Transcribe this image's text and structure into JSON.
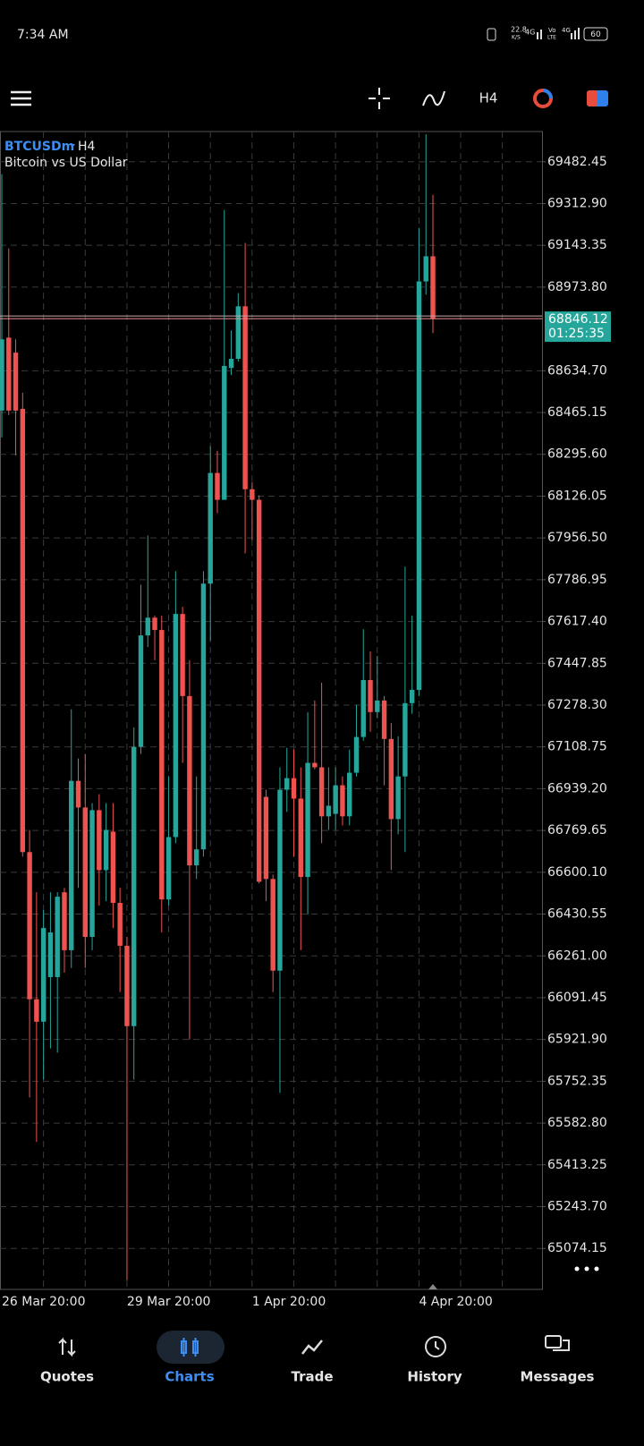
{
  "status_bar": {
    "time": "7:34 AM",
    "speed": "22.8",
    "speed_unit": "K/S",
    "network": "4G",
    "volte": "Vo",
    "volte_sub": "LTE",
    "network2": "4G",
    "battery": "60"
  },
  "toolbar": {
    "timeframe": "H4"
  },
  "chart_data": {
    "type": "candlestick",
    "title": "BTCUSDm",
    "timeframe": "H4",
    "subtitle": "Bitcoin vs US Dollar",
    "categories": [
      "26 Mar 20:00",
      null,
      null,
      null,
      null,
      null,
      null,
      null,
      null,
      null,
      null,
      null,
      null,
      null,
      null,
      null,
      null,
      null,
      "29 Mar 20:00",
      null,
      null,
      null,
      null,
      null,
      null,
      null,
      null,
      null,
      null,
      null,
      null,
      null,
      null,
      null,
      null,
      null,
      "1 Apr 20:00",
      null,
      null,
      null,
      null,
      null,
      null,
      null,
      null,
      null,
      null,
      null,
      null,
      null,
      null,
      null,
      null,
      null,
      null,
      null,
      null,
      null,
      null,
      null,
      "4 Apr 20:00",
      null,
      null
    ],
    "open": [
      68473,
      68769,
      68708,
      68480,
      66682,
      66085,
      65994,
      66175,
      66175,
      66519,
      66284,
      66971,
      66863,
      66338,
      66852,
      66609,
      66765,
      66476,
      66302,
      65976,
      67109,
      67561,
      67633,
      67583,
      66490,
      66743,
      67648,
      67315,
      66628,
      66693,
      67771,
      68220,
      68111,
      68646,
      68683,
      68896,
      68154,
      68111,
      66906,
      66573,
      66201,
      66935,
      66982,
      66899,
      66581,
      67044,
      67026,
      66827,
      66837,
      66953,
      66827,
      67004,
      67149,
      67380,
      67250,
      67297,
      67141,
      66816,
      66989,
      67286,
      67340,
      68997,
      69099
    ],
    "high": [
      69432,
      69131,
      68762,
      68545,
      66772,
      66519,
      66447,
      66519,
      66519,
      66537,
      67261,
      67062,
      67080,
      66881,
      66917,
      66881,
      66881,
      66537,
      66338,
      67188,
      67767,
      67966,
      67641,
      67641,
      66989,
      67822,
      67677,
      67460,
      66989,
      67822,
      68328,
      68310,
      69287,
      68798,
      68950,
      69153,
      68183,
      68129,
      66935,
      66591,
      67026,
      67105,
      67098,
      67026,
      67250,
      67297,
      67369,
      67026,
      67026,
      66989,
      67098,
      67279,
      67586,
      67496,
      67478,
      67315,
      67206,
      67152,
      67840,
      67641,
      69214,
      69594,
      69348
    ],
    "low": [
      68364,
      68455,
      68292,
      66664,
      65687,
      65506,
      65759,
      65886,
      65868,
      66193,
      66212,
      66537,
      66212,
      66284,
      66465,
      66483,
      66374,
      66114,
      64945,
      65759,
      67080,
      67514,
      67460,
      66356,
      66465,
      66718,
      67044,
      65922,
      66573,
      66664,
      67539,
      68057,
      68111,
      68617,
      68672,
      67894,
      67948,
      66555,
      66483,
      66114,
      65705,
      66845,
      66664,
      66284,
      66429,
      67018,
      66718,
      66772,
      66772,
      66790,
      66790,
      66989,
      67134,
      67170,
      67225,
      66953,
      66609,
      66754,
      66682,
      67243,
      67315,
      68943,
      68787
    ],
    "close": [
      68762,
      68473,
      68473,
      66682,
      66085,
      65994,
      66374,
      66356,
      66501,
      66284,
      66971,
      66863,
      66338,
      66852,
      66609,
      66772,
      66476,
      66302,
      65976,
      67109,
      67561,
      67633,
      67583,
      66490,
      66743,
      67648,
      67315,
      66628,
      66693,
      67771,
      68220,
      68111,
      68654,
      68683,
      68896,
      68154,
      68111,
      66562,
      66573,
      66201,
      66935,
      66982,
      66899,
      66581,
      67044,
      67026,
      66827,
      66870,
      66953,
      66827,
      67004,
      67149,
      67380,
      67250,
      67297,
      67141,
      66816,
      66989,
      67286,
      67340,
      68997,
      69099,
      68846.12
    ],
    "up_color": "#26a69a",
    "down_color": "#ef5350",
    "last_price": 68846.12,
    "countdown": "01:25:35",
    "ylim": [
      64908,
      69605
    ],
    "yticks": [
      69482.45,
      {
        "value": 69312.9,
        "label": "69312.90"
      },
      69143.35,
      {
        "value": 68973.8,
        "label": "68973.80"
      },
      {
        "value": 68634.7,
        "label": "68634.70"
      },
      68465.15,
      {
        "value": 68295.6,
        "label": "68295.60"
      },
      68126.05,
      {
        "value": 67956.5,
        "label": "67956.50"
      },
      67786.95,
      {
        "value": 67617.4,
        "label": "67617.40"
      },
      67447.85,
      {
        "value": 67278.3,
        "label": "67278.30"
      },
      67108.75,
      {
        "value": 66939.2,
        "label": "66939.20"
      },
      66769.65,
      {
        "value": 66600.1,
        "label": "66600.10"
      },
      66430.55,
      {
        "value": 66261,
        "label": "66261.00"
      },
      66091.45,
      {
        "value": 65921.9,
        "label": "65921.90"
      },
      65752.35,
      {
        "value": 65582.8,
        "label": "65582.80"
      },
      65413.25,
      {
        "value": 65243.7,
        "label": "65243.70"
      },
      65074.15
    ],
    "grid": true
  },
  "nav": {
    "items": [
      "Quotes",
      "Charts",
      "Trade",
      "History",
      "Messages"
    ]
  }
}
